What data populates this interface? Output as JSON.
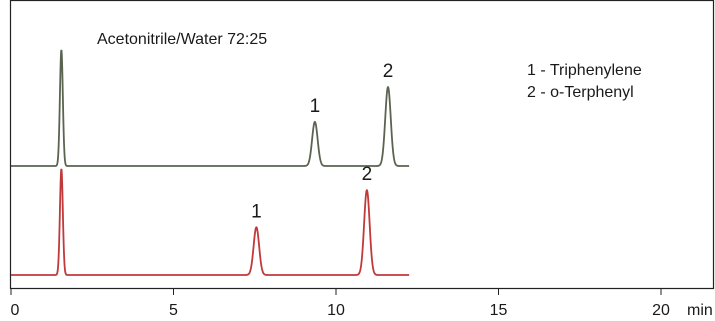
{
  "chart_data": {
    "type": "line",
    "title": "Acetonitrile/Water 72:25",
    "xlabel": "min",
    "ylabel": "",
    "xlim": [
      0,
      22
    ],
    "x_ticks": [
      {
        "value": 0,
        "label": "0"
      },
      {
        "value": 5,
        "label": "5"
      },
      {
        "value": 10,
        "label": "10"
      },
      {
        "value": 15,
        "label": "15"
      },
      {
        "value": 20,
        "label": "20"
      }
    ],
    "legend": [
      "1 - Triphenylene",
      "2 - o-Terphenyl"
    ],
    "legend_position": "top-right",
    "series": [
      {
        "color": "#5a6450",
        "peaks": [
          {
            "label": "",
            "x": 1.55,
            "height": 1.0
          },
          {
            "label": "1",
            "x": 9.35,
            "height": 0.38
          },
          {
            "label": "2",
            "x": 11.6,
            "height": 0.68
          }
        ]
      },
      {
        "color": "#c0393b",
        "peaks": [
          {
            "label": "",
            "x": 1.55,
            "height": 1.0
          },
          {
            "label": "1",
            "x": 7.55,
            "height": 0.45
          },
          {
            "label": "2",
            "x": 10.95,
            "height": 0.8
          }
        ]
      }
    ],
    "baseline_end_x": 12.25,
    "grid": false
  }
}
